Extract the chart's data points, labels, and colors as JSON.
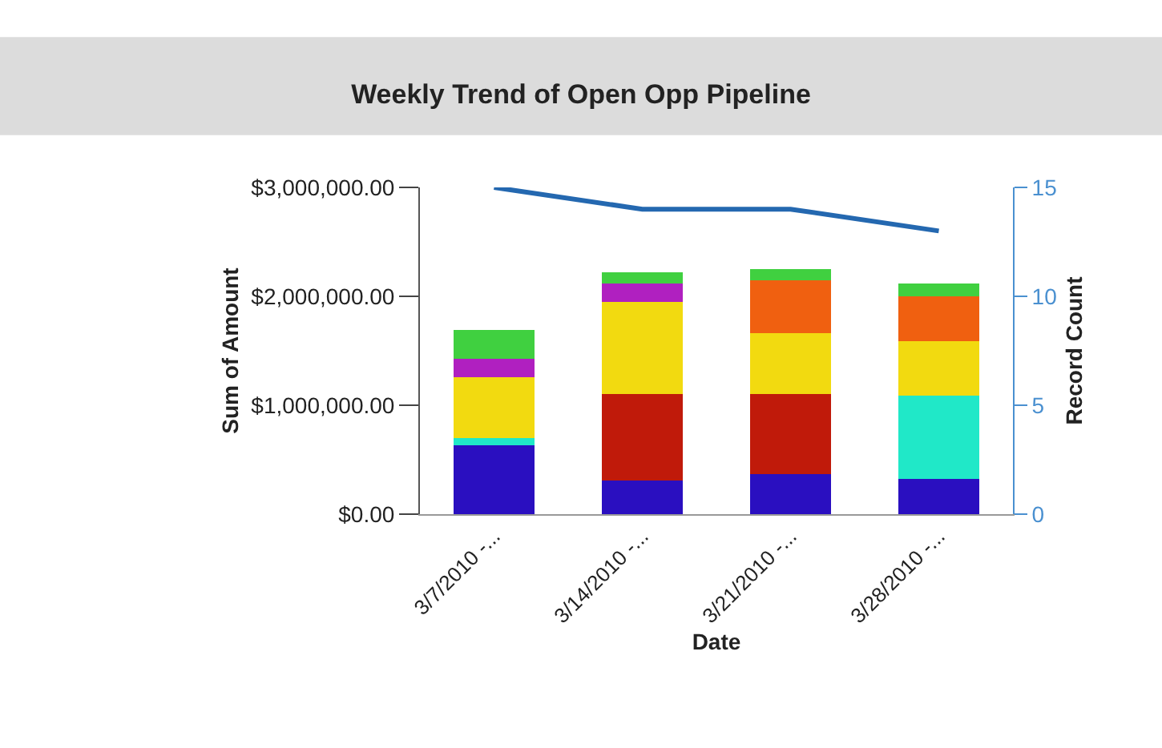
{
  "chart_data": {
    "type": "bar",
    "stacked": true,
    "title": "Weekly Trend of Open Opp Pipeline",
    "xlabel": "Date",
    "ylabel": "Sum of Amount",
    "y2label": "Record Count",
    "categories": [
      "3/7/2010 -...",
      "3/14/2010 -...",
      "3/21/2010 -...",
      "3/28/2010 -..."
    ],
    "series": [
      {
        "color": "#2a0fc0",
        "values": [
          630000,
          310000,
          370000,
          320000
        ]
      },
      {
        "color": "#20e8c8",
        "values": [
          70000,
          null,
          null,
          770000
        ]
      },
      {
        "color": "#c01a0a",
        "values": [
          null,
          790000,
          730000,
          null
        ]
      },
      {
        "color": "#f2da10",
        "values": [
          560000,
          850000,
          560000,
          500000
        ]
      },
      {
        "color": "#f06010",
        "values": [
          null,
          null,
          490000,
          410000
        ]
      },
      {
        "color": "#b020c0",
        "values": [
          170000,
          170000,
          null,
          null
        ]
      },
      {
        "color": "#40d040",
        "values": [
          260000,
          100000,
          100000,
          120000
        ]
      },
      {
        "type": "line",
        "axis": "y2",
        "color": "#2468b0",
        "values": [
          15,
          14,
          14,
          13
        ]
      }
    ],
    "ylim": [
      0,
      3000000
    ],
    "yticks": [
      {
        "value": 0,
        "label": "$0.00"
      },
      {
        "value": 1000000,
        "label": "$1,000,000.00"
      },
      {
        "value": 2000000,
        "label": "$2,000,000.00"
      },
      {
        "value": 3000000,
        "label": "$3,000,000.00"
      }
    ],
    "y2lim": [
      0,
      15
    ],
    "y2ticks": [
      0,
      5,
      10,
      15
    ],
    "marker": "none"
  }
}
